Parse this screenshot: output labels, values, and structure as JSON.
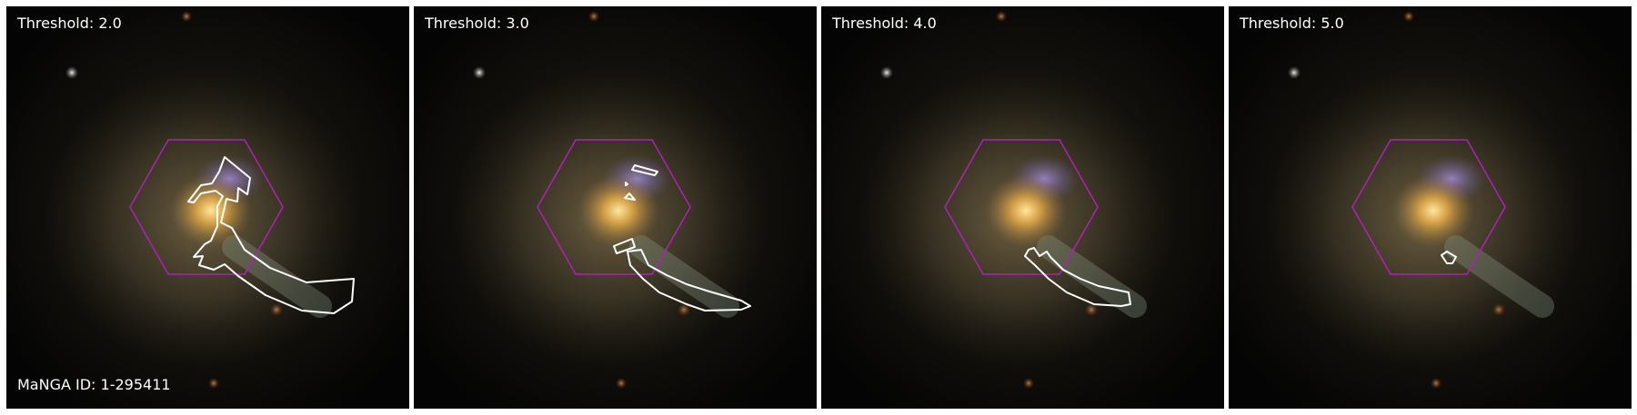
{
  "figure": {
    "galaxy_id_label": "MaNGA ID: 1-295411",
    "panels": [
      {
        "threshold_label": "Threshold: 2.0"
      },
      {
        "threshold_label": "Threshold: 3.0"
      },
      {
        "threshold_label": "Threshold: 4.0"
      },
      {
        "threshold_label": "Threshold: 5.0"
      }
    ],
    "colors": {
      "background": "#ffffff",
      "hexagon": "#b020b8",
      "contour": "#ffffff",
      "text": "#ffffff"
    }
  }
}
